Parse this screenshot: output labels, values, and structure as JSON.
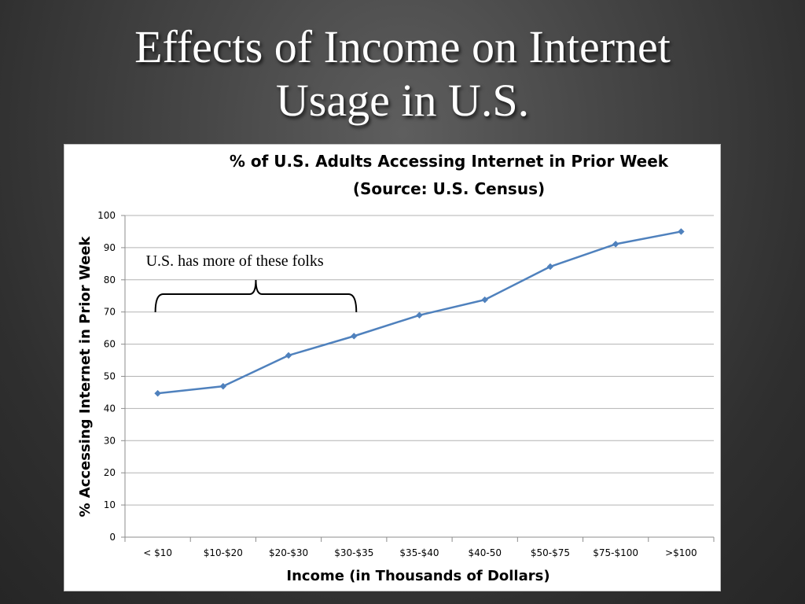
{
  "slide": {
    "title_line1": "Effects of Income on Internet",
    "title_line2": "Usage in U.S."
  },
  "chart_data": {
    "type": "line",
    "title": "% of U.S. Adults Accessing Internet in Prior Week",
    "subtitle": "(Source: U.S. Census)",
    "xlabel": "Income (in Thousands of Dollars)",
    "ylabel": "% Accessing Internet in Prior Week",
    "categories": [
      "< $10",
      "$10-$20",
      "$20-$30",
      "$30-$35",
      "$35-$40",
      "$40-50",
      "$50-$75",
      "$75-$100",
      ">$100"
    ],
    "series": [
      {
        "values": [
          44.7,
          46.9,
          56.5,
          62.5,
          69,
          73.8,
          84.1,
          91.1,
          95
        ]
      }
    ],
    "ylim": [
      0,
      100
    ],
    "yticks": [
      0,
      10,
      20,
      30,
      40,
      50,
      60,
      70,
      80,
      90,
      100
    ],
    "grid": true,
    "legend": "none",
    "line_color": "#4f81bd",
    "annotation": {
      "text": "U.S. has more of these folks",
      "bracket_categories": [
        "< $10",
        "$30-$35"
      ]
    }
  }
}
